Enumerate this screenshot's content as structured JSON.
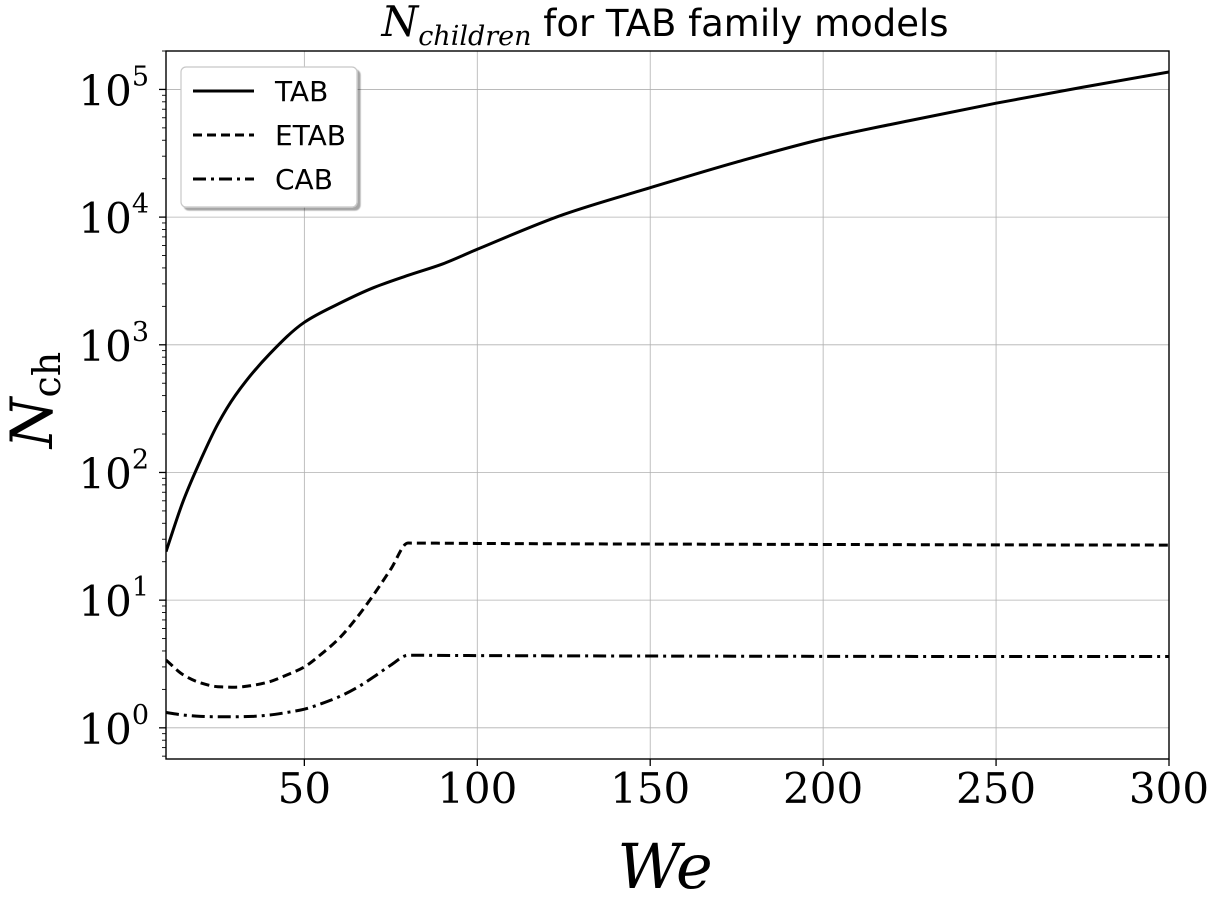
{
  "chart_data": {
    "type": "line",
    "title": {
      "math": "N",
      "math_sub": "children",
      "text": " for TAB family models"
    },
    "xlabel": "We",
    "ylabel": {
      "main": "N",
      "sub": "ch"
    },
    "xlim": [
      10,
      300
    ],
    "ylim": [
      0.57,
      200000
    ],
    "yscale": "log",
    "grid": true,
    "legend_position": "upper-left",
    "x_ticks": [
      50,
      100,
      150,
      200,
      250,
      300
    ],
    "y_ticks": [
      1,
      10,
      100,
      1000,
      10000,
      100000
    ],
    "y_tick_labels": [
      {
        "base": "10",
        "exp": "0"
      },
      {
        "base": "10",
        "exp": "1"
      },
      {
        "base": "10",
        "exp": "2"
      },
      {
        "base": "10",
        "exp": "3"
      },
      {
        "base": "10",
        "exp": "4"
      },
      {
        "base": "10",
        "exp": "5"
      }
    ],
    "series": [
      {
        "name": "TAB",
        "style": "solid",
        "color": "#000000",
        "x": [
          10,
          15,
          20,
          25,
          30,
          40,
          50,
          60,
          70,
          80,
          90,
          100,
          125,
          150,
          175,
          200,
          225,
          250,
          275,
          300
        ],
        "y": [
          24,
          60,
          125,
          240,
          400,
          850,
          1500,
          2100,
          2800,
          3500,
          4300,
          5600,
          10500,
          17000,
          27000,
          41000,
          57000,
          78000,
          104000,
          137000
        ]
      },
      {
        "name": "ETAB",
        "style": "dashed",
        "color": "#000000",
        "x": [
          10,
          15,
          20,
          25,
          30,
          35,
          40,
          45,
          50,
          55,
          60,
          65,
          70,
          75,
          80,
          100,
          150,
          200,
          250,
          300
        ],
        "y": [
          3.4,
          2.6,
          2.25,
          2.1,
          2.08,
          2.15,
          2.3,
          2.6,
          3.0,
          3.8,
          5.0,
          7.2,
          11,
          17.5,
          28,
          27.8,
          27.5,
          27.3,
          27.1,
          27
        ]
      },
      {
        "name": "CAB",
        "style": "dashdot",
        "color": "#000000",
        "x": [
          10,
          15,
          20,
          25,
          30,
          35,
          40,
          45,
          50,
          55,
          60,
          65,
          70,
          75,
          80,
          100,
          150,
          200,
          250,
          300
        ],
        "y": [
          1.32,
          1.26,
          1.23,
          1.22,
          1.22,
          1.23,
          1.26,
          1.32,
          1.4,
          1.55,
          1.75,
          2.05,
          2.5,
          3.1,
          3.7,
          3.68,
          3.65,
          3.63,
          3.62,
          3.62
        ]
      }
    ]
  }
}
